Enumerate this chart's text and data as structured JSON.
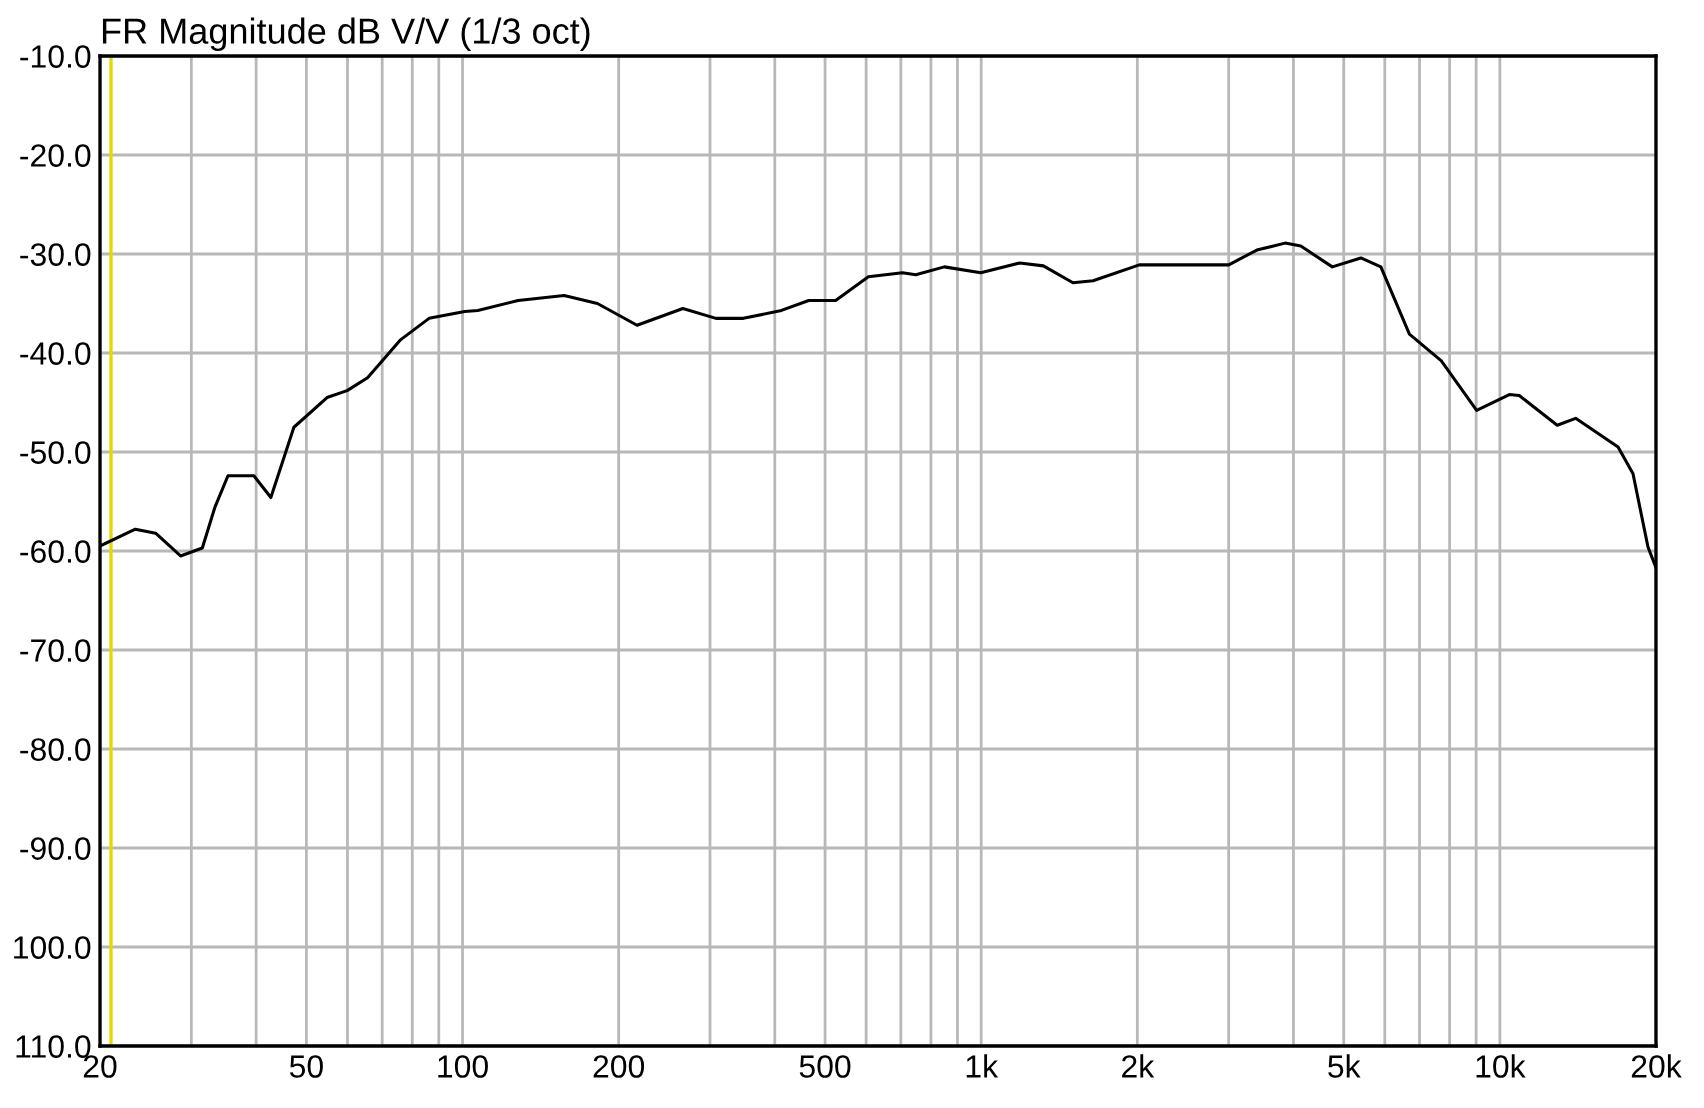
{
  "chart_data": {
    "type": "line",
    "title": "FR Magnitude dB V/V (1/3 oct)",
    "log": "x",
    "grid": true,
    "line_style": "solid",
    "marker": "none",
    "xlim": [
      20,
      20000
    ],
    "ylim": [
      -110,
      -10
    ],
    "xticks": [
      20,
      {
        "value": 30,
        "label": null
      },
      {
        "value": 40,
        "label": null
      },
      50,
      {
        "value": 60,
        "label": null
      },
      {
        "value": 70,
        "label": null
      },
      {
        "value": 80,
        "label": null
      },
      {
        "value": 90,
        "label": null
      },
      100,
      200,
      {
        "value": 300,
        "label": null
      },
      {
        "value": 400,
        "label": null
      },
      500,
      {
        "value": 600,
        "label": null
      },
      {
        "value": 700,
        "label": null
      },
      {
        "value": 800,
        "label": null
      },
      {
        "value": 900,
        "label": null
      },
      {
        "value": 1000,
        "label": "1k"
      },
      {
        "value": 2000,
        "label": "2k"
      },
      {
        "value": 3000,
        "label": null
      },
      {
        "value": 4000,
        "label": null
      },
      {
        "value": 5000,
        "label": "5k"
      },
      {
        "value": 6000,
        "label": null
      },
      {
        "value": 7000,
        "label": null
      },
      {
        "value": 8000,
        "label": null
      },
      {
        "value": 9000,
        "label": null
      },
      {
        "value": 10000,
        "label": "10k"
      },
      {
        "value": 20000,
        "label": "20k"
      }
    ],
    "yticks": [
      {
        "value": -10,
        "label": "-10.0"
      },
      {
        "value": -20,
        "label": "-20.0"
      },
      {
        "value": -30,
        "label": "-30.0"
      },
      {
        "value": -40,
        "label": "-40.0"
      },
      {
        "value": -50,
        "label": "-50.0"
      },
      {
        "value": -60,
        "label": "-60.0"
      },
      {
        "value": -70,
        "label": "-70.0"
      },
      {
        "value": -80,
        "label": "-80.0"
      },
      {
        "value": -90,
        "label": "-90.0"
      },
      {
        "value": -100,
        "label": "100.0"
      },
      {
        "value": -110,
        "label": "110.0"
      }
    ],
    "ref_lines": [
      {
        "axis": "x",
        "value": 21,
        "color": "#e8d800"
      }
    ],
    "series": [
      {
        "color": "#000000",
        "x": [
          20,
          23.4,
          25.6,
          28.6,
          31.5,
          33.3,
          35.3,
          39.6,
          42.7,
          47.3,
          54.8,
          59.9,
          65.6,
          75.8,
          86.2,
          101,
          107,
          128,
          157,
          182,
          217,
          266,
          308,
          348,
          412,
          465,
          524,
          606,
          705,
          748,
          849,
          998,
          1187,
          1318,
          1503,
          1643,
          2018,
          2268,
          3001,
          3400,
          3853,
          4133,
          4753,
          5395,
          5896,
          6693,
          7712,
          9020,
          10430,
          10900,
          12900,
          14000,
          16900,
          18060,
          19300,
          20000
        ],
        "values": [
          -59.5,
          -57.8,
          -58.2,
          -60.5,
          -59.7,
          -55.6,
          -52.4,
          -52.4,
          -54.6,
          -47.5,
          -44.5,
          -43.8,
          -42.5,
          -38.7,
          -36.5,
          -35.8,
          -35.7,
          -34.7,
          -34.2,
          -35.0,
          -37.2,
          -35.5,
          -36.5,
          -36.5,
          -35.7,
          -34.7,
          -34.7,
          -32.3,
          -31.9,
          -32.1,
          -31.3,
          -31.9,
          -30.9,
          -31.2,
          -32.9,
          -32.7,
          -31.1,
          -31.1,
          -31.1,
          -29.6,
          -28.9,
          -29.2,
          -31.3,
          -30.4,
          -31.3,
          -38.1,
          -40.8,
          -45.8,
          -44.2,
          -44.3,
          -47.3,
          -46.6,
          -49.5,
          -52.2,
          -59.6,
          -61.7
        ]
      }
    ]
  }
}
